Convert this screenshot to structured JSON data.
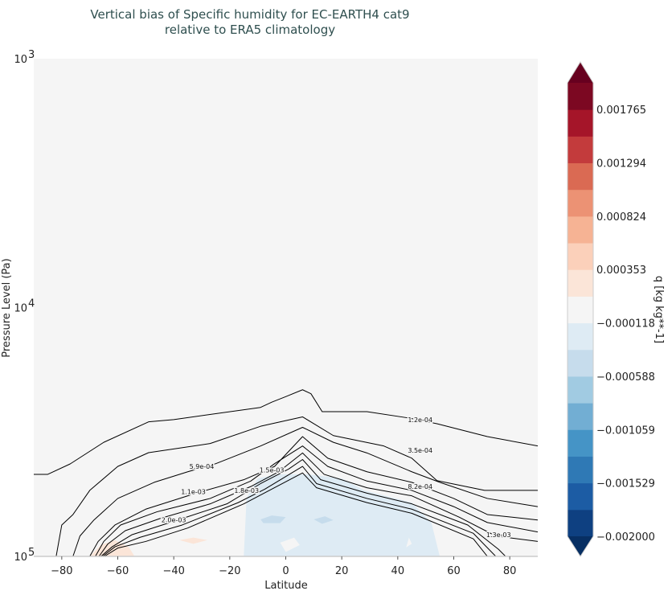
{
  "chart_data": {
    "type": "contour",
    "title_lines": [
      "Vertical bias of Specific humidity for EC-EARTH4 cat9",
      "relative to ERA5 climatology"
    ],
    "xlabel": "Latitude",
    "ylabel": "Pressure Level (Pa)",
    "xlim": [
      -90,
      90
    ],
    "ylim": [
      100000,
      1000
    ],
    "yscale": "log",
    "xticks": [
      -80,
      -60,
      -40,
      -20,
      0,
      20,
      40,
      60,
      80
    ],
    "yticks": [
      {
        "value": 1000,
        "base": "10",
        "exp": "3"
      },
      {
        "value": 10000,
        "base": "10",
        "exp": "4"
      },
      {
        "value": 100000,
        "base": "10",
        "exp": "5"
      }
    ],
    "colorbar": {
      "label": "q [kg kg**-1]",
      "vmin": -0.002,
      "vmax": 0.002,
      "nbins": 17,
      "extend": "both",
      "ticks": [
        -0.002,
        -0.001529,
        -0.001059,
        -0.000588,
        -0.000118,
        0.000353,
        0.000824,
        0.001294,
        0.001765
      ],
      "tick_labels": [
        "−0.002000",
        "−0.001529",
        "−0.001059",
        "−0.000588",
        "−0.000118",
        "0.000353",
        "0.000824",
        "0.001294",
        "0.001765"
      ],
      "colors": [
        "#0e4081",
        "#1c5ca4",
        "#2f79b5",
        "#4594c6",
        "#72aed3",
        "#a1cbe2",
        "#c6dcec",
        "#deebf4",
        "#f5f5f5",
        "#fbe5d8",
        "#fbd0ba",
        "#f6b394",
        "#ec9274",
        "#da6a53",
        "#c33b3c",
        "#a51529",
        "#7c0822"
      ],
      "under_color": "#072f63",
      "over_color": "#67001f"
    },
    "filled_regions": [
      {
        "value_bin": "-0.000353..-0.000118",
        "color": "#deebf4",
        "points": [
          [
            -15,
            100000
          ],
          [
            -14,
            58500
          ],
          [
            -10,
            48600
          ],
          [
            -3,
            46800
          ],
          [
            8,
            46800
          ],
          [
            20,
            48600
          ],
          [
            28,
            54300
          ],
          [
            45,
            60800
          ],
          [
            52,
            73100
          ],
          [
            55,
            100000
          ]
        ]
      },
      {
        "value_bin": "-0.000588..-0.000353",
        "color": "#c6dcec",
        "points": [
          [
            -9,
            71000
          ],
          [
            -5,
            68500
          ],
          [
            0,
            69500
          ],
          [
            -2,
            73500
          ],
          [
            -8,
            73500
          ]
        ]
      },
      {
        "value_bin": "-0.000588..-0.000353",
        "color": "#c6dcec",
        "points": [
          [
            10,
            71000
          ],
          [
            14,
            69000
          ],
          [
            17,
            71500
          ],
          [
            13,
            74000
          ]
        ]
      },
      {
        "value_bin": "-0.000118..0.000118",
        "color": "#f5f5f5",
        "points": [
          [
            -2,
            88000
          ],
          [
            3,
            84000
          ],
          [
            5,
            90000
          ],
          [
            0,
            96000
          ]
        ]
      },
      {
        "value_bin": "-0.000118..0.000118",
        "color": "#f5f5f5",
        "points": [
          [
            44,
            84000
          ],
          [
            45,
            89000
          ],
          [
            43,
            92000
          ]
        ]
      },
      {
        "value_bin": "0.000118..0.000353",
        "color": "#fbe5d8",
        "points": [
          [
            -70,
            100000
          ],
          [
            -66,
            90000
          ],
          [
            -61,
            86000
          ],
          [
            -56,
            92000
          ],
          [
            -54,
            100000
          ]
        ]
      },
      {
        "value_bin": "0.000118..0.000353",
        "color": "#fbe5d8",
        "points": [
          [
            -38,
            86000
          ],
          [
            -33,
            84000
          ],
          [
            -28,
            86000
          ],
          [
            -33,
            89000
          ]
        ]
      }
    ],
    "contours": [
      {
        "label": "1.2e-04",
        "label_at": [
          48,
          28200
        ],
        "points": [
          [
            -90,
            46800
          ],
          [
            -85,
            46800
          ],
          [
            -77,
            42500
          ],
          [
            -65,
            34800
          ],
          [
            -49,
            28800
          ],
          [
            -40,
            28200
          ],
          [
            -9,
            25200
          ],
          [
            -5,
            24000
          ],
          [
            0,
            22800
          ],
          [
            6,
            21400
          ],
          [
            9,
            22200
          ],
          [
            13,
            26200
          ],
          [
            29,
            26200
          ],
          [
            44,
            27800
          ],
          [
            54,
            29300
          ],
          [
            72,
            33000
          ],
          [
            90,
            36000
          ]
        ]
      },
      {
        "label": "3.5e-04",
        "label_at": [
          48,
          37400
        ],
        "points": [
          [
            -82,
            100000
          ],
          [
            -80,
            74800
          ],
          [
            -76,
            67900
          ],
          [
            -70,
            54300
          ],
          [
            -60,
            43500
          ],
          [
            -49,
            38300
          ],
          [
            -27,
            35200
          ],
          [
            -9,
            30000
          ],
          [
            6,
            27500
          ],
          [
            17,
            32700
          ],
          [
            35,
            36000
          ],
          [
            45,
            40300
          ],
          [
            54,
            49600
          ],
          [
            71,
            54300
          ],
          [
            90,
            54300
          ]
        ]
      },
      {
        "label": "5.9e-04",
        "label_at": [
          -30,
          43500
        ],
        "points": [
          [
            -76,
            100000
          ],
          [
            -73.5,
            82800
          ],
          [
            -68.5,
            71400
          ],
          [
            -60,
            58500
          ],
          [
            -47,
            50400
          ],
          [
            -35,
            45700
          ],
          [
            -25,
            42400
          ],
          [
            -9,
            36000
          ],
          [
            6,
            30300
          ],
          [
            17,
            34800
          ],
          [
            29,
            38400
          ],
          [
            45,
            45700
          ],
          [
            55,
            50400
          ],
          [
            72,
            58500
          ],
          [
            90,
            63100
          ]
        ]
      },
      {
        "label": "8.2e-04",
        "label_at": [
          48,
          52400
        ],
        "points": [
          [
            -70,
            100000
          ],
          [
            -67,
            87100
          ],
          [
            -61,
            74800
          ],
          [
            -50,
            64600
          ],
          [
            -32,
            55700
          ],
          [
            -15,
            49200
          ],
          [
            -4,
            43500
          ],
          [
            6,
            33000
          ],
          [
            15,
            40300
          ],
          [
            29,
            45700
          ],
          [
            45,
            50400
          ],
          [
            60,
            58500
          ],
          [
            72,
            67900
          ],
          [
            90,
            71400
          ]
        ]
      },
      {
        "label": "1.1e-03",
        "label_at": [
          -33,
          55000
        ],
        "points": [
          [
            -68,
            100000
          ],
          [
            -65,
            87100
          ],
          [
            -59,
            74800
          ],
          [
            -46,
            66200
          ],
          [
            -27,
            58500
          ],
          [
            -12.5,
            49800
          ],
          [
            -4,
            42400
          ],
          [
            6,
            36000
          ],
          [
            15,
            43500
          ],
          [
            29,
            49800
          ],
          [
            45,
            54300
          ],
          [
            60,
            63100
          ],
          [
            72,
            73100
          ],
          [
            90,
            79800
          ]
        ]
      },
      {
        "label": "1.3e-03",
        "label_at": [
          76,
          81900
        ],
        "points": [
          [
            -66.7,
            100000
          ],
          [
            -63.6,
            89300
          ],
          [
            -57.3,
            78800
          ],
          [
            -45,
            70500
          ],
          [
            -27,
            61500
          ],
          [
            -12.5,
            52400
          ],
          [
            -2.5,
            45700
          ],
          [
            6,
            38400
          ],
          [
            13.7,
            46800
          ],
          [
            29,
            53000
          ],
          [
            45,
            57100
          ],
          [
            62,
            69600
          ],
          [
            75,
            82800
          ],
          [
            90,
            87100
          ]
        ]
      },
      {
        "label": "1.5e-03",
        "label_at": [
          -5,
          45000
        ],
        "points": [
          [
            -66,
            100000
          ],
          [
            -62,
            91500
          ],
          [
            -55,
            81900
          ],
          [
            -40,
            72300
          ],
          [
            -21,
            61500
          ],
          [
            -9,
            51000
          ],
          [
            1,
            44600
          ],
          [
            6,
            40800
          ],
          [
            12.5,
            49200
          ],
          [
            29,
            55700
          ],
          [
            45,
            61500
          ],
          [
            65,
            74800
          ],
          [
            76,
            93700
          ],
          [
            78.5,
            100000
          ]
        ]
      },
      {
        "label": "1.8e-03",
        "label_at": [
          -14,
          54300
        ],
        "points": [
          [
            -65.4,
            100000
          ],
          [
            -61,
            91500
          ],
          [
            -52,
            83800
          ],
          [
            -37,
            74800
          ],
          [
            -17,
            60800
          ],
          [
            -7.5,
            53700
          ],
          [
            6,
            43500
          ],
          [
            11,
            51000
          ],
          [
            29,
            58500
          ],
          [
            45,
            64600
          ],
          [
            67,
            80800
          ],
          [
            75,
            100000
          ]
        ]
      },
      {
        "label": "2.0e-03",
        "label_at": [
          -40,
          71400
        ],
        "points": [
          [
            -64.8,
            100000
          ],
          [
            -60,
            92600
          ],
          [
            -50,
            87100
          ],
          [
            -35,
            76900
          ],
          [
            -15,
            61500
          ],
          [
            6,
            46200
          ],
          [
            11,
            53000
          ],
          [
            29,
            60800
          ],
          [
            45,
            67100
          ],
          [
            67,
            85000
          ],
          [
            72,
            100000
          ]
        ]
      }
    ]
  }
}
